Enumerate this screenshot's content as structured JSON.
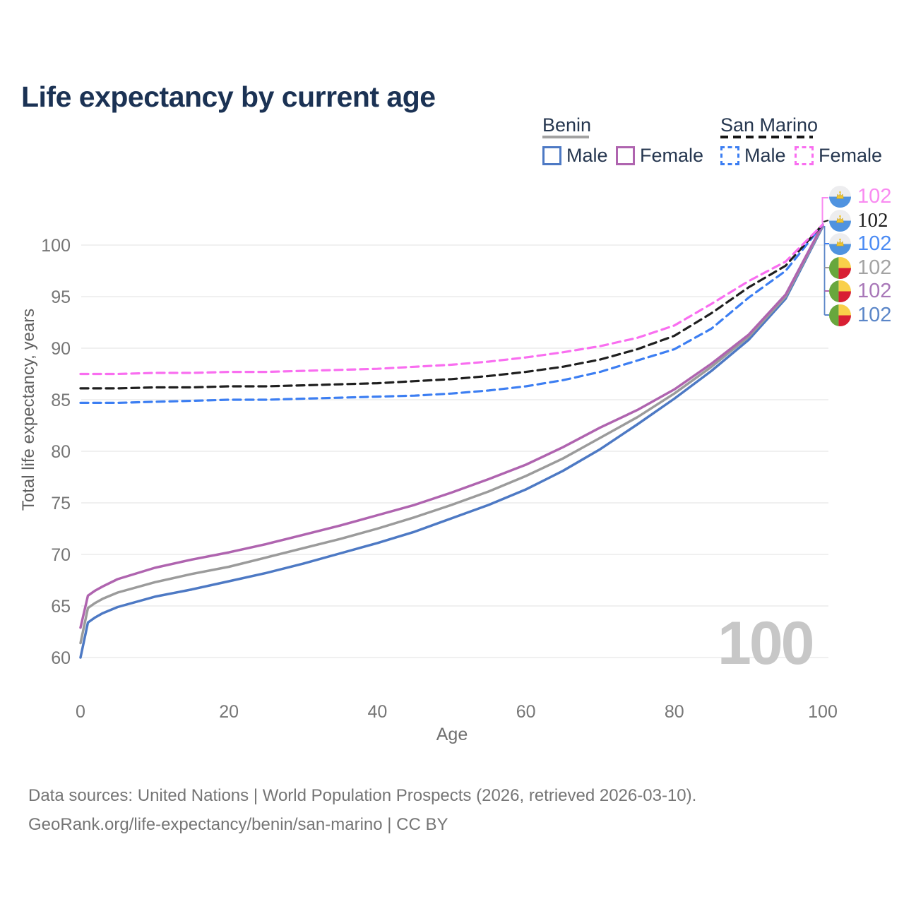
{
  "title": "Life expectancy by current age",
  "legend": {
    "groups": [
      {
        "label": "Benin",
        "line_style": "solid",
        "underline_color": "#a2a2a2"
      },
      {
        "label": "San Marino",
        "line_style": "dashed",
        "underline_color": "#161616"
      }
    ],
    "items": [
      {
        "label": "Male",
        "country": "Benin",
        "color": "#4d79c4",
        "dashed": false
      },
      {
        "label": "Female",
        "country": "Benin",
        "color": "#af64af",
        "dashed": false
      },
      {
        "label": "Male",
        "country": "San Marino",
        "color": "#3c7ef2",
        "dashed": true
      },
      {
        "label": "Female",
        "country": "San Marino",
        "color": "#f96ef0",
        "dashed": true
      }
    ]
  },
  "chart_data": {
    "type": "line",
    "title": "Life expectancy by current age",
    "xlabel": "Age",
    "ylabel": "Total life expectancy, years",
    "xlim": [
      0,
      100
    ],
    "ylim": [
      58,
      103
    ],
    "xticks": [
      0,
      20,
      40,
      60,
      80,
      100
    ],
    "yticks": [
      60,
      65,
      70,
      75,
      80,
      85,
      90,
      95,
      100
    ],
    "grid": "horizontal",
    "legend_position": "top-right",
    "ages": [
      0,
      1,
      2,
      3,
      5,
      10,
      15,
      20,
      25,
      30,
      35,
      40,
      45,
      50,
      55,
      60,
      65,
      70,
      75,
      80,
      85,
      90,
      95,
      100
    ],
    "series": [
      {
        "name": "Benin Male",
        "country": "Benin",
        "sex": "male",
        "color": "#4d79c4",
        "dashed": false,
        "values": [
          60.0,
          63.4,
          63.9,
          64.3,
          64.9,
          65.9,
          66.6,
          67.4,
          68.2,
          69.1,
          70.1,
          71.1,
          72.2,
          73.5,
          74.8,
          76.3,
          78.1,
          80.2,
          82.6,
          85.1,
          87.8,
          90.8,
          94.8,
          101.8
        ]
      },
      {
        "name": "Benin Total",
        "country": "Benin",
        "sex": "both",
        "color": "#9b9b9b",
        "dashed": false,
        "values": [
          61.4,
          64.8,
          65.3,
          65.7,
          66.3,
          67.3,
          68.1,
          68.8,
          69.7,
          70.6,
          71.5,
          72.5,
          73.6,
          74.8,
          76.1,
          77.6,
          79.3,
          81.3,
          83.3,
          85.6,
          88.2,
          91.1,
          95.0,
          101.9
        ]
      },
      {
        "name": "Benin Female",
        "country": "Benin",
        "sex": "female",
        "color": "#af64af",
        "dashed": false,
        "values": [
          62.9,
          66.0,
          66.5,
          66.9,
          67.6,
          68.7,
          69.5,
          70.2,
          71.0,
          71.9,
          72.8,
          73.8,
          74.8,
          76.0,
          77.3,
          78.7,
          80.4,
          82.3,
          84.0,
          86.0,
          88.5,
          91.3,
          95.2,
          102.0
        ]
      },
      {
        "name": "San Marino Male",
        "country": "San Marino",
        "sex": "male",
        "color": "#3c7ef2",
        "dashed": true,
        "values": [
          84.7,
          84.7,
          84.7,
          84.7,
          84.7,
          84.8,
          84.9,
          85.0,
          85.0,
          85.1,
          85.2,
          85.3,
          85.4,
          85.6,
          85.9,
          86.3,
          86.9,
          87.7,
          88.8,
          89.9,
          91.9,
          94.9,
          97.5,
          102.0
        ]
      },
      {
        "name": "San Marino Total",
        "country": "San Marino",
        "sex": "both",
        "color": "#1f1f1f",
        "dashed": true,
        "values": [
          86.1,
          86.1,
          86.1,
          86.1,
          86.1,
          86.2,
          86.2,
          86.3,
          86.3,
          86.4,
          86.5,
          86.6,
          86.8,
          87.0,
          87.3,
          87.7,
          88.2,
          88.9,
          89.9,
          91.2,
          93.4,
          95.9,
          98.0,
          102.0
        ]
      },
      {
        "name": "San Marino Female",
        "country": "San Marino",
        "sex": "female",
        "color": "#f96ef0",
        "dashed": true,
        "values": [
          87.5,
          87.5,
          87.5,
          87.5,
          87.5,
          87.6,
          87.6,
          87.7,
          87.7,
          87.8,
          87.9,
          88.0,
          88.2,
          88.4,
          88.7,
          89.1,
          89.6,
          90.2,
          91.0,
          92.2,
          94.3,
          96.5,
          98.4,
          102.0
        ]
      }
    ]
  },
  "end_labels": [
    {
      "country": "San Marino",
      "series": "Female",
      "value": "102",
      "color": "#f98bf1",
      "flag": "san-marino"
    },
    {
      "country": "San Marino",
      "series": "Total",
      "value": "102",
      "color": "#1c1c1c",
      "flag": "san-marino"
    },
    {
      "country": "San Marino",
      "series": "Male",
      "value": "102",
      "color": "#4b8bf4",
      "flag": "san-marino"
    },
    {
      "country": "Benin",
      "series": "Total",
      "value": "102",
      "color": "#a3a3a3",
      "flag": "benin"
    },
    {
      "country": "Benin",
      "series": "Female",
      "value": "102",
      "color": "#a877b8",
      "flag": "benin"
    },
    {
      "country": "Benin",
      "series": "Male",
      "value": "102",
      "color": "#5b86c8",
      "flag": "benin"
    }
  ],
  "watermark": "100",
  "footer": {
    "line1": "Data sources: United Nations | World Population Prospects (2026, retrieved 2026-03-10).",
    "line2": "GeoRank.org/life-expectancy/benin/san-marino | CC BY"
  }
}
